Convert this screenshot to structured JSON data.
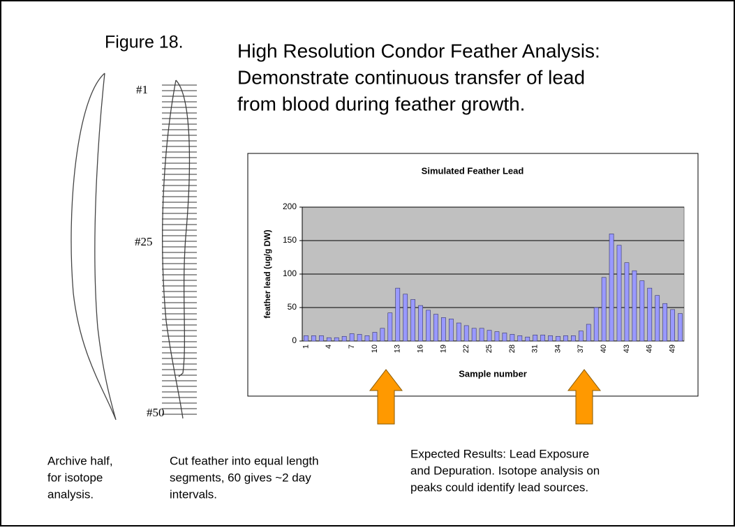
{
  "figure_label": "Figure 18.",
  "title_lines": [
    "High Resolution Condor Feather Analysis:",
    "Demonstrate continuous transfer of lead",
    "from blood during feather growth."
  ],
  "feather_labels": [
    "#1",
    "#25",
    "#50"
  ],
  "captions": {
    "archive": [
      "Archive half,",
      "for isotope",
      "analysis."
    ],
    "cut": [
      "Cut feather into equal length",
      "segments, 60 gives ~2 day",
      "intervals."
    ],
    "expected": [
      "Expected Results:  Lead Exposure",
      "and Depuration. Isotope analysis on",
      "peaks could identify lead sources."
    ]
  },
  "chart_data": {
    "type": "bar",
    "title": "Simulated Feather Lead",
    "x_label": "Sample number",
    "y_label": "feather lead (ug/g DW)",
    "categories": [
      1,
      null,
      null,
      4,
      null,
      null,
      7,
      null,
      null,
      10,
      null,
      null,
      13,
      null,
      null,
      16,
      null,
      null,
      19,
      null,
      null,
      22,
      null,
      null,
      25,
      null,
      null,
      28,
      null,
      null,
      31,
      null,
      null,
      34,
      null,
      null,
      37,
      null,
      null,
      40,
      null,
      null,
      43,
      null,
      null,
      46,
      null,
      null,
      49,
      null
    ],
    "values": [
      8,
      8,
      8,
      5,
      5,
      7,
      11,
      10,
      8,
      13,
      19,
      42,
      79,
      70,
      62,
      53,
      46,
      40,
      35,
      33,
      27,
      23,
      19,
      19,
      16,
      14,
      12,
      10,
      8,
      6,
      9,
      9,
      8,
      7,
      8,
      8,
      15,
      25,
      50,
      95,
      160,
      143,
      117,
      105,
      90,
      79,
      68,
      56,
      47,
      41
    ],
    "color": "#9999ff",
    "ylim": [
      0,
      200
    ],
    "yticks": [
      0,
      50,
      100,
      150,
      200
    ],
    "grid": true
  }
}
